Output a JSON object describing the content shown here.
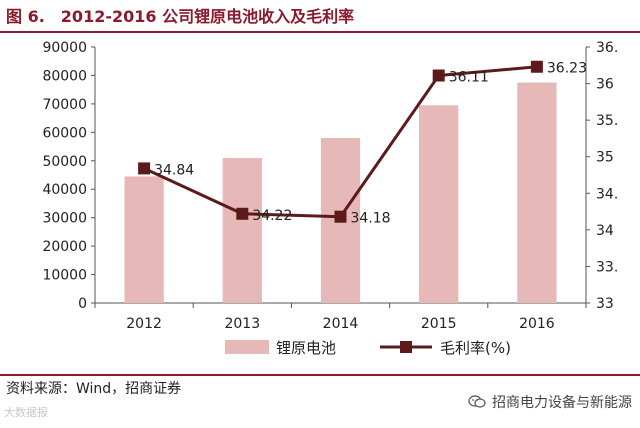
{
  "header": {
    "figure_label": "图 6.",
    "title": "2012-2016 公司锂原电池收入及毛利率"
  },
  "footer": {
    "source": "资料来源：Wind，招商证券",
    "watermark_left": "大数据报",
    "watermark_right": "招商电力设备与新能源"
  },
  "colors": {
    "accent": "#8B1A2B",
    "bar": "#E6B8B8",
    "line": "#5C1A1A"
  },
  "chart_data": {
    "type": "bar",
    "categories": [
      "2012",
      "2013",
      "2014",
      "2015",
      "2016"
    ],
    "series": [
      {
        "name": "锂原电池",
        "type": "bar",
        "axis": "left",
        "values": [
          44500,
          51000,
          58000,
          69500,
          77500
        ]
      },
      {
        "name": "毛利率(%)",
        "type": "line",
        "axis": "right",
        "values": [
          34.84,
          34.22,
          34.18,
          36.11,
          36.23
        ],
        "data_labels": [
          "34.84",
          "34.22",
          "34.18",
          "36.11",
          "36.23"
        ]
      }
    ],
    "left_axis": {
      "ylim": [
        0,
        90000
      ],
      "ticks": [
        "0",
        "10000",
        "20000",
        "30000",
        "40000",
        "50000",
        "60000",
        "70000",
        "80000",
        "90000"
      ]
    },
    "right_axis": {
      "ylim": [
        33,
        36.5
      ],
      "ticks": [
        "33",
        "33.",
        "34",
        "34.",
        "35",
        "35.",
        "36",
        "36."
      ]
    },
    "grid": false,
    "legend_position": "bottom"
  }
}
